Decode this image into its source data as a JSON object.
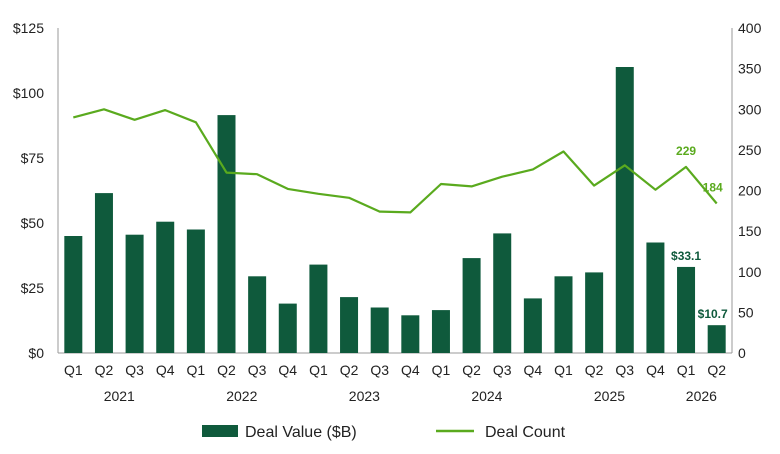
{
  "chart_data": {
    "type": "bar",
    "categories": [
      "Q1",
      "Q2",
      "Q3",
      "Q4",
      "Q1",
      "Q2",
      "Q3",
      "Q4",
      "Q1",
      "Q2",
      "Q3",
      "Q4",
      "Q1",
      "Q2",
      "Q3",
      "Q4",
      "Q1",
      "Q2",
      "Q3",
      "Q4",
      "Q1",
      "Q2"
    ],
    "years": [
      {
        "label": "2021",
        "start": 0,
        "end": 3
      },
      {
        "label": "2022",
        "start": 4,
        "end": 7
      },
      {
        "label": "2023",
        "start": 8,
        "end": 11
      },
      {
        "label": "2024",
        "start": 12,
        "end": 15
      },
      {
        "label": "2025",
        "start": 16,
        "end": 19
      },
      {
        "label": "2026",
        "start": 20,
        "end": 21
      }
    ],
    "series": [
      {
        "name": "Deal Value ($B)",
        "type": "bar",
        "axis": "left",
        "color": "#0f5a3c",
        "values": [
          45,
          61.5,
          45.5,
          50.5,
          47.5,
          91.5,
          29.5,
          19,
          34,
          21.5,
          17.5,
          14.5,
          16.5,
          36.5,
          46,
          21,
          29.5,
          31,
          110,
          42.5,
          33.1,
          10.7
        ]
      },
      {
        "name": "Deal Count",
        "type": "line",
        "axis": "right",
        "color": "#5aaa1e",
        "values": [
          290,
          300,
          287,
          299,
          284,
          222,
          220,
          202,
          196,
          191,
          174,
          173,
          208,
          205,
          217,
          226,
          248,
          206,
          231,
          201,
          229,
          184
        ]
      }
    ],
    "data_labels": {
      "bars": [
        {
          "index": 20,
          "text": "$33.1"
        },
        {
          "index": 21,
          "text": "$10.7"
        }
      ],
      "line": [
        {
          "index": 20,
          "text": "229"
        },
        {
          "index": 21,
          "text": "184"
        }
      ]
    },
    "y_left": {
      "min": 0,
      "max": 125,
      "ticks": [
        0,
        25,
        50,
        75,
        100,
        125
      ],
      "tick_labels": [
        "$0",
        "$25",
        "$50",
        "$75",
        "$100",
        "$125"
      ]
    },
    "y_right": {
      "min": 0,
      "max": 400,
      "ticks": [
        0,
        50,
        100,
        150,
        200,
        250,
        300,
        350,
        400
      ],
      "tick_labels": [
        "0",
        "50",
        "100",
        "150",
        "200",
        "250",
        "300",
        "350",
        "400"
      ]
    },
    "grid": false,
    "legend_position": "bottom-center",
    "title": "",
    "xlabel": "",
    "ylabel": ""
  },
  "legend": {
    "bar_label": "Deal Value ($B)",
    "line_label": "Deal Count"
  }
}
